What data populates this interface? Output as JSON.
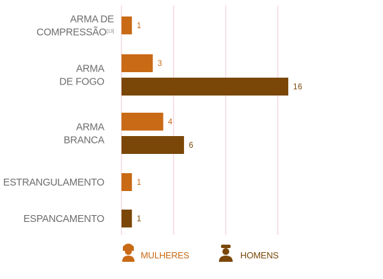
{
  "chart_data": {
    "type": "bar",
    "orientation": "horizontal",
    "categories": [
      {
        "lines": [
          "ARMA DE",
          "COMPRESSÃO"
        ],
        "note": "[13]"
      },
      {
        "lines": [
          "ARMA",
          "DE FOGO"
        ],
        "note": ""
      },
      {
        "lines": [
          "ARMA",
          "BRANCA"
        ],
        "note": ""
      },
      {
        "lines": [
          "ESTRANGULAMENTO"
        ],
        "note": ""
      },
      {
        "lines": [
          "ESPANCAMENTO"
        ],
        "note": ""
      }
    ],
    "series": [
      {
        "name": "MULHERES",
        "color": "#c96a16",
        "values": [
          1,
          3,
          4,
          1,
          null
        ]
      },
      {
        "name": "HOMENS",
        "color": "#7a4708",
        "values": [
          null,
          16,
          6,
          null,
          1
        ]
      }
    ],
    "xlim": [
      0,
      16
    ],
    "grid": true,
    "gridline_color": "#f2c6d3",
    "legend": {
      "placement": "bottom",
      "items": [
        {
          "label": "MULHERES",
          "icon": "woman-icon",
          "color": "#c96a16"
        },
        {
          "label": "HOMENS",
          "icon": "man-icon",
          "color": "#7a4708"
        }
      ]
    }
  }
}
